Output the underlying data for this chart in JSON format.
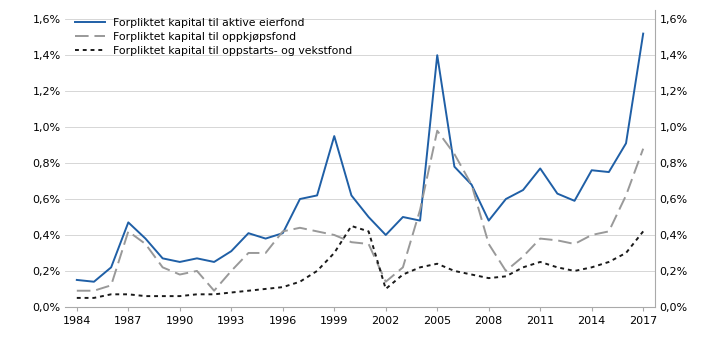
{
  "years": [
    1984,
    1985,
    1986,
    1987,
    1988,
    1989,
    1990,
    1991,
    1992,
    1993,
    1994,
    1995,
    1996,
    1997,
    1998,
    1999,
    2000,
    2001,
    2002,
    2003,
    2004,
    2005,
    2006,
    2007,
    2008,
    2009,
    2010,
    2011,
    2012,
    2013,
    2014,
    2015,
    2016,
    2017
  ],
  "aktive_eierfond": [
    0.15,
    0.14,
    0.22,
    0.47,
    0.38,
    0.27,
    0.25,
    0.27,
    0.25,
    0.31,
    0.41,
    0.38,
    0.41,
    0.6,
    0.62,
    0.95,
    0.62,
    0.5,
    0.4,
    0.5,
    0.48,
    1.4,
    0.78,
    0.68,
    0.48,
    0.6,
    0.65,
    0.77,
    0.63,
    0.59,
    0.76,
    0.75,
    0.91,
    1.52
  ],
  "oppkjopsfond": [
    0.09,
    0.09,
    0.12,
    0.42,
    0.35,
    0.22,
    0.18,
    0.2,
    0.09,
    0.2,
    0.3,
    0.3,
    0.42,
    0.44,
    0.42,
    0.4,
    0.36,
    0.35,
    0.14,
    0.22,
    0.54,
    0.98,
    0.85,
    0.68,
    0.35,
    0.2,
    0.28,
    0.38,
    0.37,
    0.35,
    0.4,
    0.42,
    0.62,
    0.88
  ],
  "oppstarts_vekstfond": [
    0.05,
    0.05,
    0.07,
    0.07,
    0.06,
    0.06,
    0.06,
    0.07,
    0.07,
    0.08,
    0.09,
    0.1,
    0.11,
    0.14,
    0.2,
    0.3,
    0.45,
    0.42,
    0.1,
    0.18,
    0.22,
    0.24,
    0.2,
    0.18,
    0.16,
    0.17,
    0.22,
    0.25,
    0.22,
    0.2,
    0.22,
    0.25,
    0.3,
    0.42
  ],
  "line1_color": "#1f5fa6",
  "line2_color": "#999999",
  "line3_color": "#1a1a1a",
  "legend_labels": [
    "Forpliktet kapital til aktive eierfond",
    "Forpliktet kapital til oppkjøpsfond",
    "Forpliktet kapital til oppstarts- og vekstfond"
  ],
  "xtick_years": [
    1984,
    1987,
    1990,
    1993,
    1996,
    1999,
    2002,
    2005,
    2008,
    2011,
    2014,
    2017
  ],
  "ytick_labels": [
    "0,0%",
    "0,2%",
    "0,4%",
    "0,6%",
    "0,8%",
    "1,0%",
    "1,2%",
    "1,4%",
    "1,6%"
  ],
  "ytick_values": [
    0.0,
    0.2,
    0.4,
    0.6,
    0.8,
    1.0,
    1.2,
    1.4,
    1.6
  ],
  "ylim": [
    0.0,
    1.65
  ],
  "background_color": "#ffffff"
}
